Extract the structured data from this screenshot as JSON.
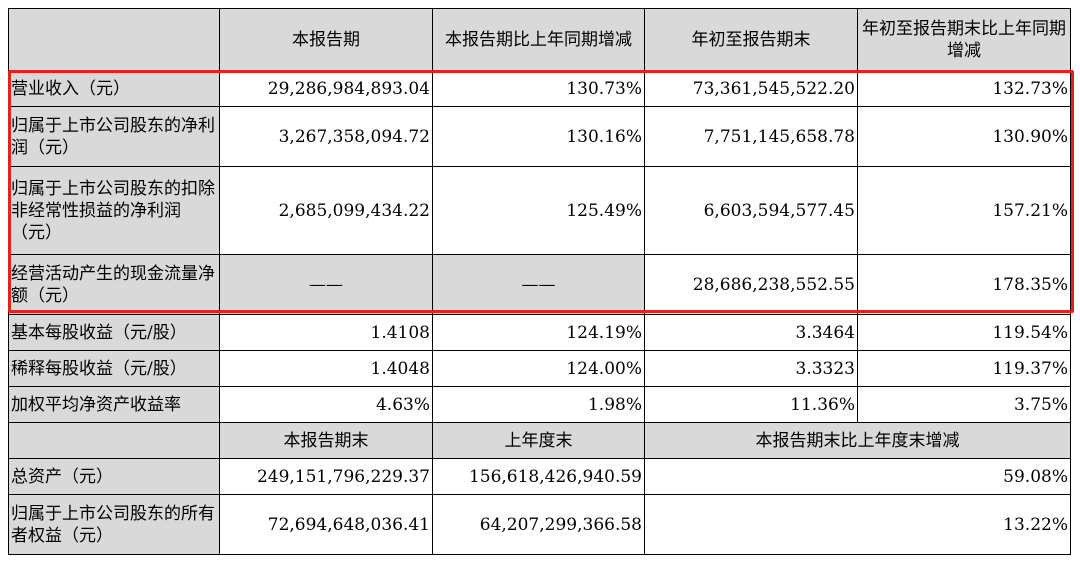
{
  "header": {
    "col1": "本报告期",
    "col2": "本报告期比上年同期增减",
    "col3": "年初至报告期末",
    "col4": "年初至报告期末比上年同期增减"
  },
  "rows": [
    {
      "label": "营业收入（元）",
      "v1": "29,286,984,893.04",
      "v2": "130.73%",
      "v3": "73,361,545,522.20",
      "v4": "132.73%"
    },
    {
      "label": "归属于上市公司股东的净利润（元）",
      "v1": "3,267,358,094.72",
      "v2": "130.16%",
      "v3": "7,751,145,658.78",
      "v4": "130.90%"
    },
    {
      "label": "归属于上市公司股东的扣除非经常性损益的净利润（元）",
      "v1": "2,685,099,434.22",
      "v2": "125.49%",
      "v3": "6,603,594,577.45",
      "v4": "157.21%"
    },
    {
      "label": "经营活动产生的现金流量净额（元）",
      "v1": "——",
      "v2": "——",
      "v3": "28,686,238,552.55",
      "v4": "178.35%"
    },
    {
      "label": "基本每股收益（元/股）",
      "v1": "1.4108",
      "v2": "124.19%",
      "v3": "3.3464",
      "v4": "119.54%"
    },
    {
      "label": "稀释每股收益（元/股）",
      "v1": "1.4048",
      "v2": "124.00%",
      "v3": "3.3323",
      "v4": "119.37%"
    },
    {
      "label": "加权平均净资产收益率",
      "v1": "4.63%",
      "v2": "1.98%",
      "v3": "11.36%",
      "v4": "3.75%"
    }
  ],
  "header2": {
    "col1": "本报告期末",
    "col2": "上年度末",
    "col3": "本报告期末比上年度末增减"
  },
  "rows2": [
    {
      "label": "总资产（元）",
      "v1": "249,151,796,229.37",
      "v2": "156,618,426,940.59",
      "v3": "59.08%"
    },
    {
      "label": "归属于上市公司股东的所有者权益（元）",
      "v1": "72,694,648,036.41",
      "v2": "64,207,299,366.58",
      "v3": "13.22%"
    }
  ],
  "highlight_color": "#e5211d"
}
